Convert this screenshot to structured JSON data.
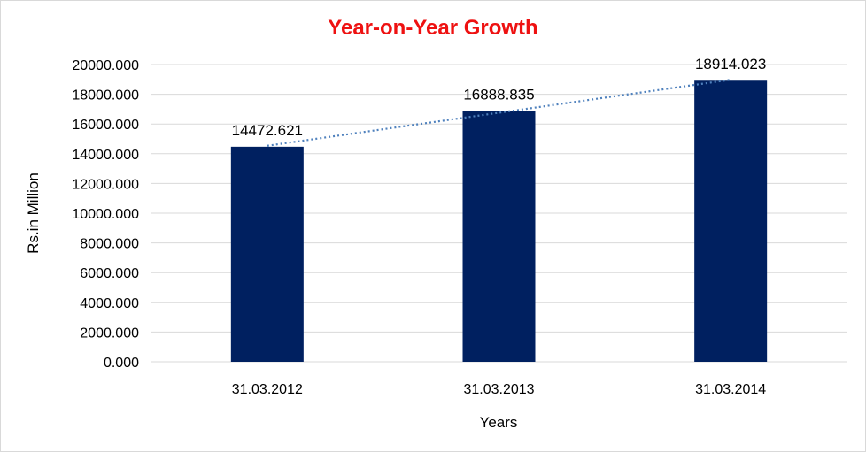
{
  "colors": {
    "title": "#ee1111",
    "bar": "#002060",
    "trendline": "#4f81bd",
    "gridline": "#d9d9d9",
    "text": "#000000"
  },
  "chart_data": {
    "type": "bar",
    "title": "Year-on-Year Growth",
    "xlabel": "Years",
    "ylabel": "Rs.in Million",
    "categories": [
      "31.03.2012",
      "31.03.2013",
      "31.03.2014"
    ],
    "values": [
      14472.621,
      16888.835,
      18914.023
    ],
    "value_labels": [
      "14472.621",
      "16888.835",
      "18914.023"
    ],
    "ylim": [
      0,
      20000
    ],
    "yticks": [
      0,
      2000,
      4000,
      6000,
      8000,
      10000,
      12000,
      14000,
      16000,
      18000,
      20000
    ],
    "ytick_labels": [
      "0.000",
      "2000.000",
      "4000.000",
      "6000.000",
      "8000.000",
      "10000.000",
      "12000.000",
      "14000.000",
      "16000.000",
      "18000.000",
      "20000.000"
    ],
    "grid": true,
    "legend": "none",
    "trendline": "linear, dotted"
  }
}
